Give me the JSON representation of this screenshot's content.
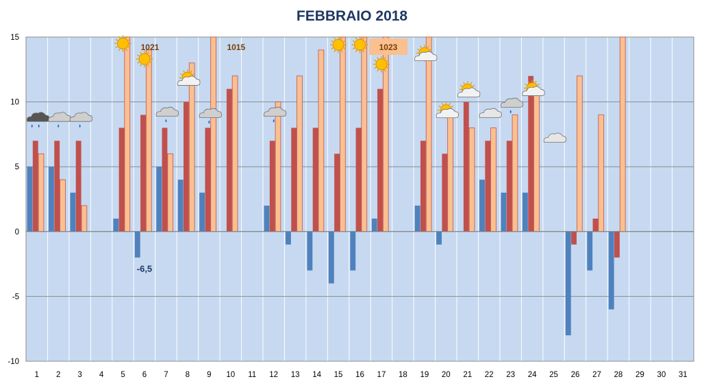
{
  "chart_data": {
    "type": "bar",
    "title": "FEBBRAIO 2018",
    "xlabel": "",
    "ylabel": "",
    "ylim": [
      -10,
      15
    ],
    "yticks": [
      -10,
      -5,
      0,
      5,
      10,
      15
    ],
    "grid": true,
    "categories": [
      "1",
      "2",
      "3",
      "4",
      "5",
      "6",
      "7",
      "8",
      "9",
      "10",
      "11",
      "12",
      "13",
      "14",
      "15",
      "16",
      "17",
      "18",
      "19",
      "20",
      "21",
      "22",
      "23",
      "24",
      "25",
      "26",
      "27",
      "28",
      "29",
      "30",
      "31"
    ],
    "series": [
      {
        "color": "#4f81bd",
        "values": [
          5,
          5,
          3,
          null,
          1,
          -2,
          5,
          4,
          3,
          null,
          null,
          2,
          -1,
          -3,
          -4,
          -3,
          1,
          null,
          2,
          -1,
          null,
          4,
          3,
          3,
          null,
          -8,
          -3,
          -6,
          null,
          null,
          null
        ]
      },
      {
        "color": "#c0504d",
        "values": [
          7,
          7,
          7,
          null,
          8,
          9,
          8,
          10,
          8,
          11,
          null,
          7,
          8,
          8,
          6,
          8,
          11,
          null,
          7,
          6,
          10,
          7,
          7,
          12,
          null,
          -1,
          1,
          -2,
          null,
          null,
          null
        ]
      },
      {
        "color": "#fac090",
        "values": [
          6,
          4,
          2,
          null,
          15,
          14,
          6,
          13,
          15,
          12,
          null,
          10,
          12,
          14,
          15,
          15,
          15,
          null,
          15,
          9,
          8,
          8,
          9,
          11,
          null,
          12,
          9,
          15,
          null,
          null,
          null
        ]
      }
    ],
    "annotations": [
      {
        "text": "1021",
        "day": 6,
        "y": 14.2,
        "box": false
      },
      {
        "text": "1015",
        "day": 10,
        "y": 14.2,
        "box": false
      },
      {
        "text": "1023",
        "day": 17,
        "y": 14.2,
        "box": true,
        "box_color": "#fac090"
      },
      {
        "text": "-6,5",
        "day": 6,
        "y": -2.9,
        "box": false
      }
    ],
    "weather_icons": [
      {
        "day": 1,
        "icon": "storm-cloud-icon",
        "y": 8.7
      },
      {
        "day": 2,
        "icon": "rain-cloud-icon",
        "y": 8.7
      },
      {
        "day": 3,
        "icon": "rain-cloud-icon",
        "y": 8.7
      },
      {
        "day": 5,
        "icon": "sun-icon",
        "y": 14.5
      },
      {
        "day": 6,
        "icon": "sun-icon",
        "y": 13.3
      },
      {
        "day": 7,
        "icon": "rain-cloud-icon",
        "y": 9.1
      },
      {
        "day": 8,
        "icon": "sun-cloud-icon",
        "y": 11.7
      },
      {
        "day": 9,
        "icon": "rain-cloud-icon",
        "y": 9.0
      },
      {
        "day": 12,
        "icon": "rain-cloud-icon",
        "y": 9.1
      },
      {
        "day": 15,
        "icon": "sun-icon",
        "y": 14.4
      },
      {
        "day": 16,
        "icon": "sun-icon",
        "y": 14.4
      },
      {
        "day": 17,
        "icon": "sun-icon",
        "y": 12.9
      },
      {
        "day": 19,
        "icon": "sun-cloud-icon",
        "y": 13.6
      },
      {
        "day": 20,
        "icon": "sun-cloud-icon",
        "y": 9.2
      },
      {
        "day": 21,
        "icon": "sun-cloud-icon",
        "y": 10.8
      },
      {
        "day": 22,
        "icon": "cloud-icon",
        "y": 9.0
      },
      {
        "day": 23,
        "icon": "rain-cloud-icon",
        "y": 9.8
      },
      {
        "day": 24,
        "icon": "sun-cloud-icon",
        "y": 10.9
      },
      {
        "day": 25,
        "icon": "cloud-icon",
        "y": 7.1
      }
    ]
  }
}
